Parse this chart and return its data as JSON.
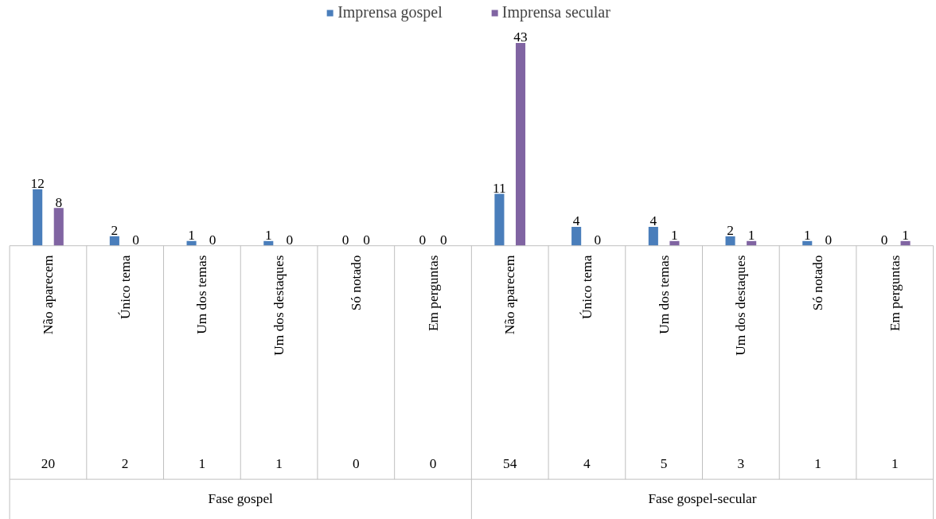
{
  "chart_data": {
    "type": "bar",
    "categories": [
      "Não aparecem",
      "Único tema",
      "Um dos temas",
      "Um dos destaques",
      "Só notado",
      "Em perguntas",
      "Não aparecem",
      "Único tema",
      "Um dos temas",
      "Um dos destaques",
      "Só notado",
      "Em perguntas"
    ],
    "series": [
      {
        "name": "Imprensa gospel",
        "color": "#4a7ebb",
        "values": [
          12,
          2,
          1,
          1,
          0,
          0,
          11,
          4,
          4,
          2,
          1,
          0
        ]
      },
      {
        "name": "Imprensa secular",
        "color": "#8064a2",
        "values": [
          8,
          0,
          0,
          0,
          0,
          0,
          43,
          0,
          1,
          1,
          0,
          1
        ]
      }
    ],
    "data_labels": true,
    "annotations": [
      "20",
      "2",
      "1",
      "1",
      "0",
      "0",
      "54",
      "4",
      "5",
      "3",
      "1",
      "1",
      "Fase gospel",
      "Fase gospel-secular"
    ],
    "legend": "top"
  }
}
